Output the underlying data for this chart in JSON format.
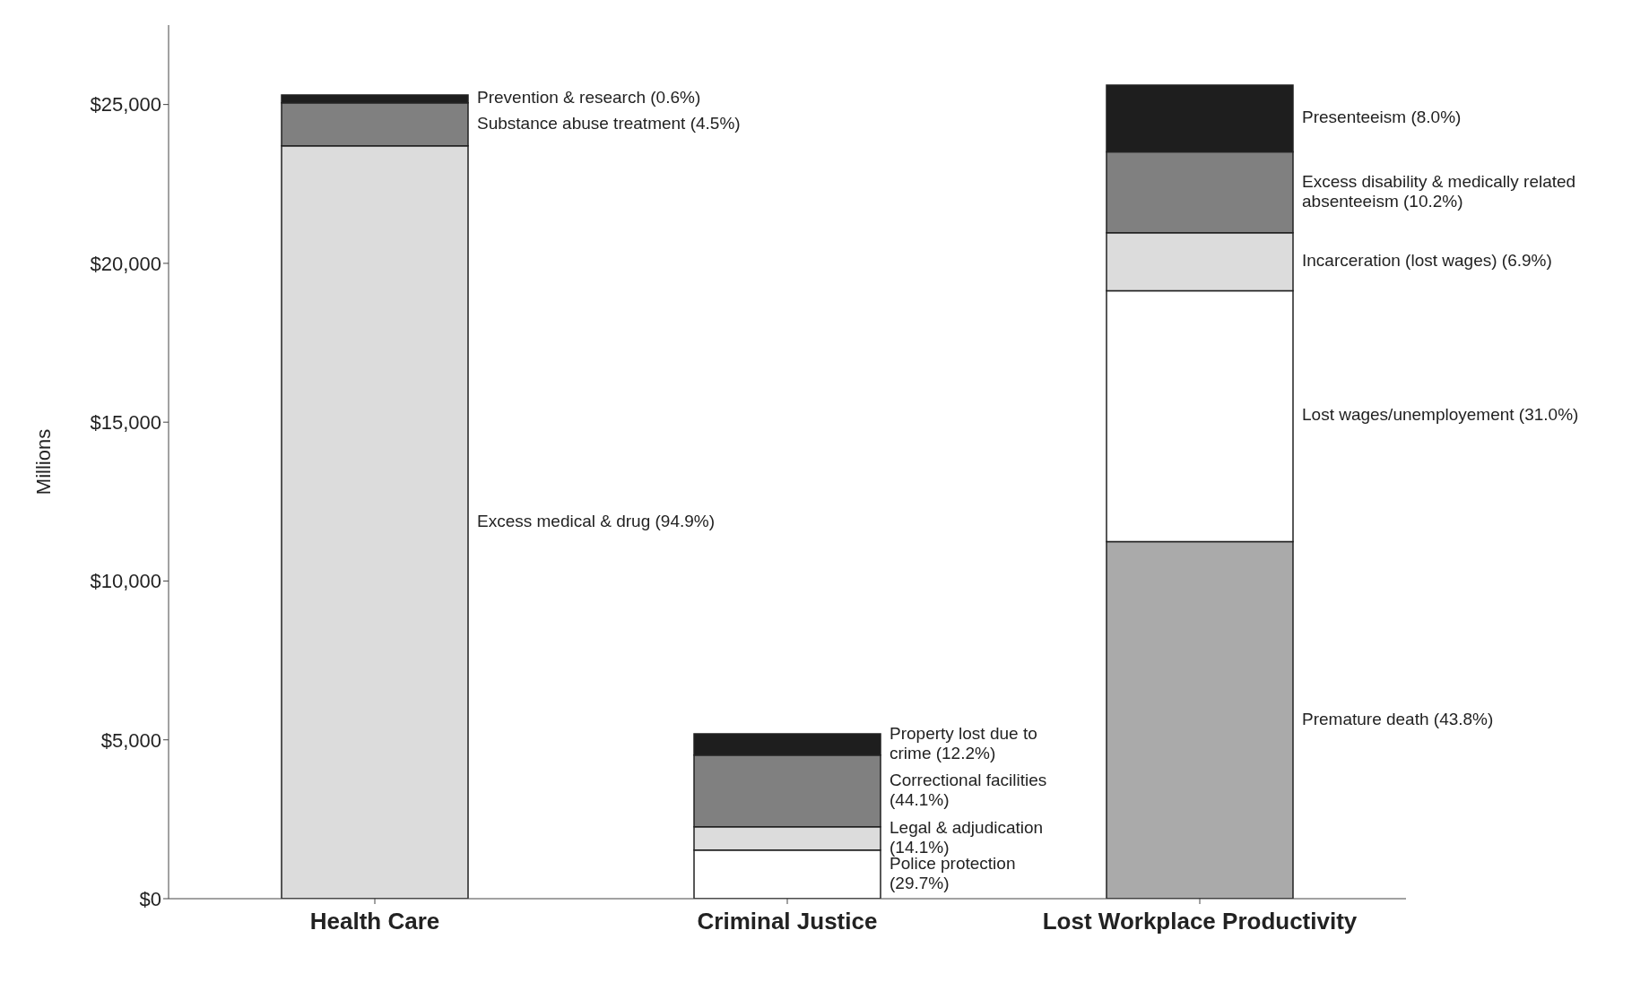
{
  "chart_data": {
    "type": "bar",
    "stacked": true,
    "ylabel": "Millions",
    "categories": [
      "Health Care",
      "Criminal Justice",
      "Lost Workplace Productivity"
    ],
    "series": [
      {
        "name": "Excess medical & drug (94.9%)",
        "color": "#dcdcdc",
        "values": [
          23700,
          null,
          null
        ]
      },
      {
        "name": "Substance abuse treatment (4.5%)",
        "color": "#808080",
        "values": [
          1350,
          null,
          null
        ]
      },
      {
        "name": "Prevention & research (0.6%)",
        "color": "#1e1e1e",
        "values": [
          250,
          null,
          null
        ]
      },
      {
        "name": "Police protection (29.7%)",
        "color": "#ffffff",
        "values": [
          null,
          1530,
          null
        ]
      },
      {
        "name": "Legal & adjudication (14.1%)",
        "color": "#dcdcdc",
        "values": [
          null,
          730,
          null
        ]
      },
      {
        "name": "Correctional facilities (44.1%)",
        "color": "#808080",
        "values": [
          null,
          2260,
          null
        ]
      },
      {
        "name": "Property lost due to crime (12.2%)",
        "color": "#1e1e1e",
        "values": [
          null,
          670,
          null
        ]
      },
      {
        "name": "Premature death (43.8%)",
        "color": "#aaaaaa",
        "values": [
          null,
          null,
          11240
        ]
      },
      {
        "name": "Lost wages/unemployement (31.0%)",
        "color": "#ffffff",
        "values": [
          null,
          null,
          7900
        ]
      },
      {
        "name": "Incarceration (lost wages) (6.9%)",
        "color": "#dcdcdc",
        "values": [
          null,
          null,
          1820
        ]
      },
      {
        "name": "Excess disability & medically related absenteeism (10.2%)",
        "color": "#808080",
        "values": [
          null,
          null,
          2550
        ]
      },
      {
        "name": "Presenteeism (8.0%)",
        "color": "#1e1e1e",
        "values": [
          null,
          null,
          2100
        ]
      }
    ],
    "ylim": [
      0,
      27500
    ],
    "yticks": [
      {
        "value": 0,
        "label": "$0"
      },
      {
        "value": 5000,
        "label": "$5,000"
      },
      {
        "value": 10000,
        "label": "$10,000"
      },
      {
        "value": 15000,
        "label": "$15,000"
      },
      {
        "value": 20000,
        "label": "$20,000"
      },
      {
        "value": 25000,
        "label": "$25,000"
      }
    ],
    "grid": false,
    "legend": false
  }
}
